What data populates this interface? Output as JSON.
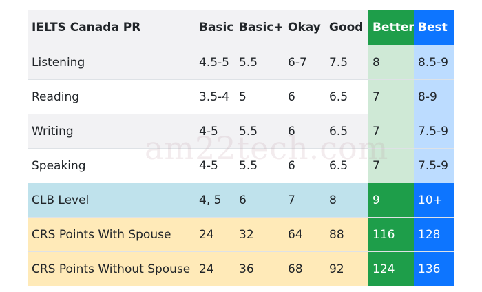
{
  "table": {
    "columns": [
      "IELTS Canada PR",
      "Basic",
      "Basic+",
      "Okay",
      "Good",
      "Better",
      "Best"
    ],
    "rows": [
      {
        "label": "Listening",
        "values": [
          "4.5-5",
          "5.5",
          "6-7",
          "7.5",
          "8",
          "8.5-9"
        ],
        "kind": "ielts"
      },
      {
        "label": "Reading",
        "values": [
          "3.5-4",
          "5",
          "6",
          "6.5",
          "7",
          "8-9"
        ],
        "kind": "ielts"
      },
      {
        "label": "Writing",
        "values": [
          "4-5",
          "5.5",
          "6",
          "6.5",
          "7",
          "7.5-9"
        ],
        "kind": "ielts"
      },
      {
        "label": "Speaking",
        "values": [
          "4-5",
          "5.5",
          "6",
          "6.5",
          "7",
          "7.5-9"
        ],
        "kind": "ielts"
      },
      {
        "label": "CLB Level",
        "values": [
          "4, 5",
          "6",
          "7",
          "8",
          "9",
          "10+"
        ],
        "kind": "clb"
      },
      {
        "label": "CRS Points With Spouse",
        "values": [
          "24",
          "32",
          "64",
          "88",
          "116",
          "128"
        ],
        "kind": "crs"
      },
      {
        "label": "CRS Points Without Spouse",
        "values": [
          "24",
          "36",
          "68",
          "92",
          "124",
          "136"
        ],
        "kind": "crs"
      }
    ]
  },
  "watermark": "am22tech.com",
  "colors": {
    "better_header": "#1e9e4a",
    "best_header": "#0d75ff",
    "clb_row": "#bfe2ec",
    "crs_row": "#ffeab8"
  }
}
